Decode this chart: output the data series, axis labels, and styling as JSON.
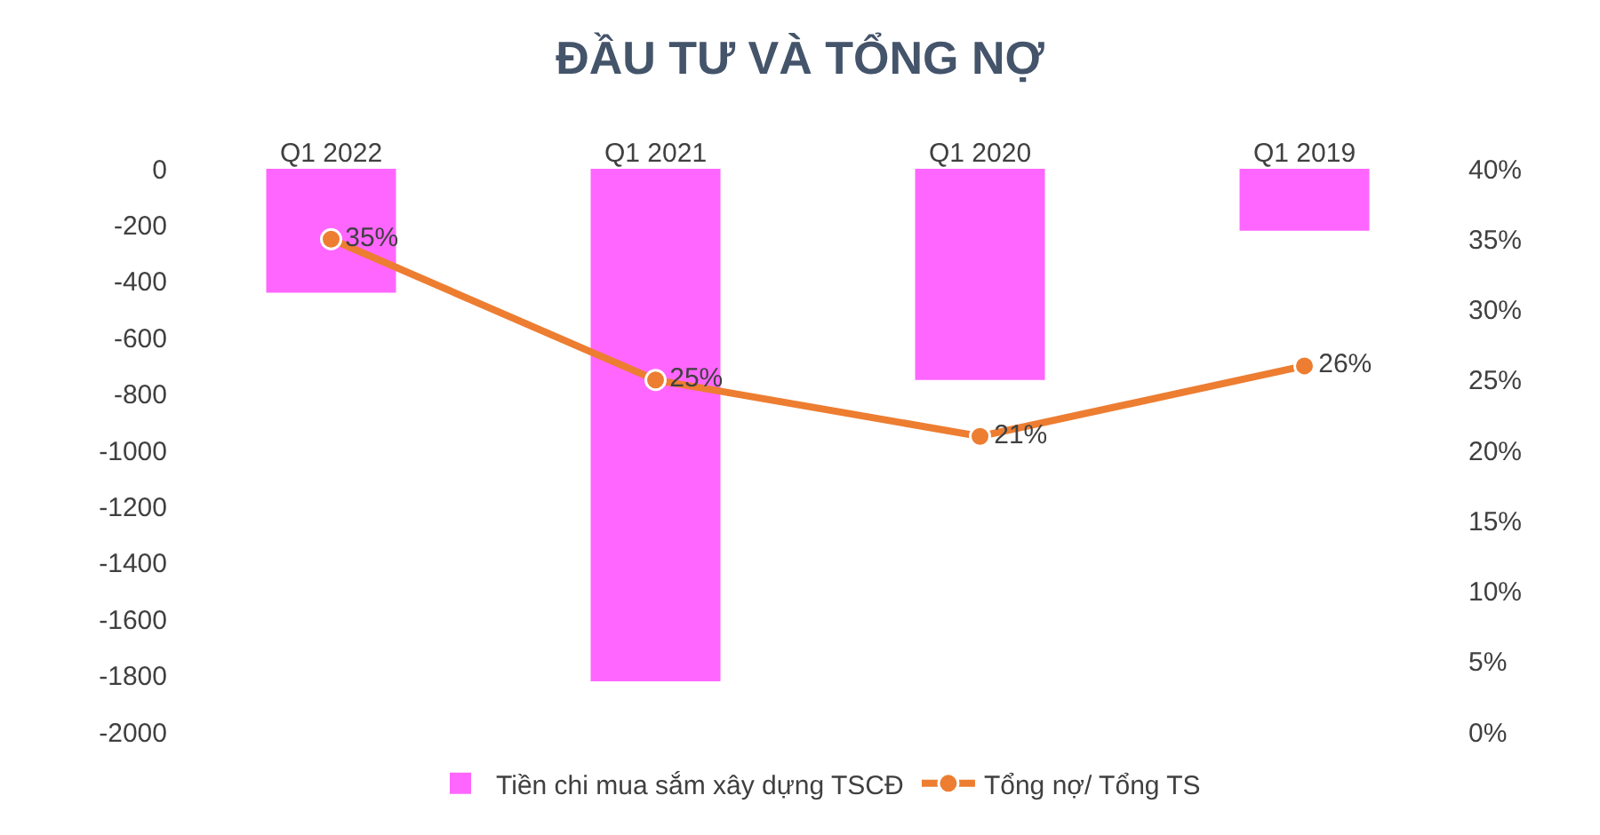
{
  "chart_data": {
    "type": "bar",
    "title": "ĐẦU TƯ VÀ TỔNG NỢ",
    "categories": [
      "Q1 2022",
      "Q1 2021",
      "Q1 2020",
      "Q1 2019"
    ],
    "series": [
      {
        "name": "Tiền chi mua sắm xây dựng TSCĐ",
        "color": "#ff66ff",
        "values": [
          -440,
          -1820,
          -750,
          -220
        ]
      },
      {
        "name": "Tổng nợ/ Tổng TS",
        "type": "line",
        "axis": "y2",
        "color": "#ed7d31",
        "values": [
          35,
          25,
          21,
          26
        ],
        "value_labels": [
          "35%",
          "25%",
          "21%",
          "26%"
        ]
      }
    ],
    "ylim": [
      -2000,
      0
    ],
    "yticks": [
      -2000,
      -1800,
      -1600,
      -1400,
      -1200,
      -1000,
      -800,
      -600,
      -400,
      -200,
      0
    ],
    "y2lim": [
      0,
      40
    ],
    "y2ticks": [
      {
        "value": 0,
        "label": "0%"
      },
      {
        "value": 5,
        "label": "5%"
      },
      {
        "value": 10,
        "label": "10%"
      },
      {
        "value": 15,
        "label": "15%"
      },
      {
        "value": 20,
        "label": "20%"
      },
      {
        "value": 25,
        "label": "25%"
      },
      {
        "value": 30,
        "label": "30%"
      },
      {
        "value": 35,
        "label": "35%"
      },
      {
        "value": 40,
        "label": "40%"
      }
    ],
    "grid": false,
    "legend": "bottom",
    "marker": "circle",
    "line_style": "solid"
  }
}
